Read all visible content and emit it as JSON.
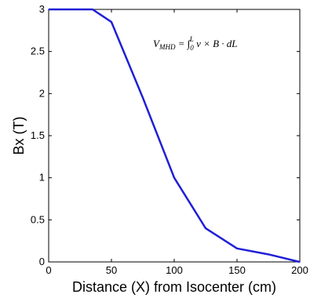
{
  "chart_data": {
    "type": "line",
    "title": "",
    "xlabel": "Distance (X) from Isocenter (cm)",
    "ylabel": "Bx (T)",
    "xlim": [
      0,
      200
    ],
    "ylim": [
      0,
      3
    ],
    "x_ticks": [
      "0",
      "50",
      "100",
      "150",
      "200"
    ],
    "y_ticks": [
      "0",
      "0.5",
      "1",
      "1.5",
      "2",
      "2.5",
      "3"
    ],
    "grid": false,
    "series": [
      {
        "color": "#1f1fd6",
        "x": [
          0,
          35,
          50,
          75,
          100,
          125,
          150,
          175,
          200
        ],
        "y": [
          3.0,
          3.0,
          2.85,
          1.95,
          1.0,
          0.4,
          0.16,
          0.09,
          0.0
        ]
      }
    ],
    "annotation": "V_MHD = ∫_0^L v × B · dL",
    "annotation_parts": {
      "lhs": "V",
      "lhs_sub": "MHD",
      "rhs": " = ∫",
      "lower": "0",
      "upper": "L",
      "body": " v × B · dL"
    }
  }
}
